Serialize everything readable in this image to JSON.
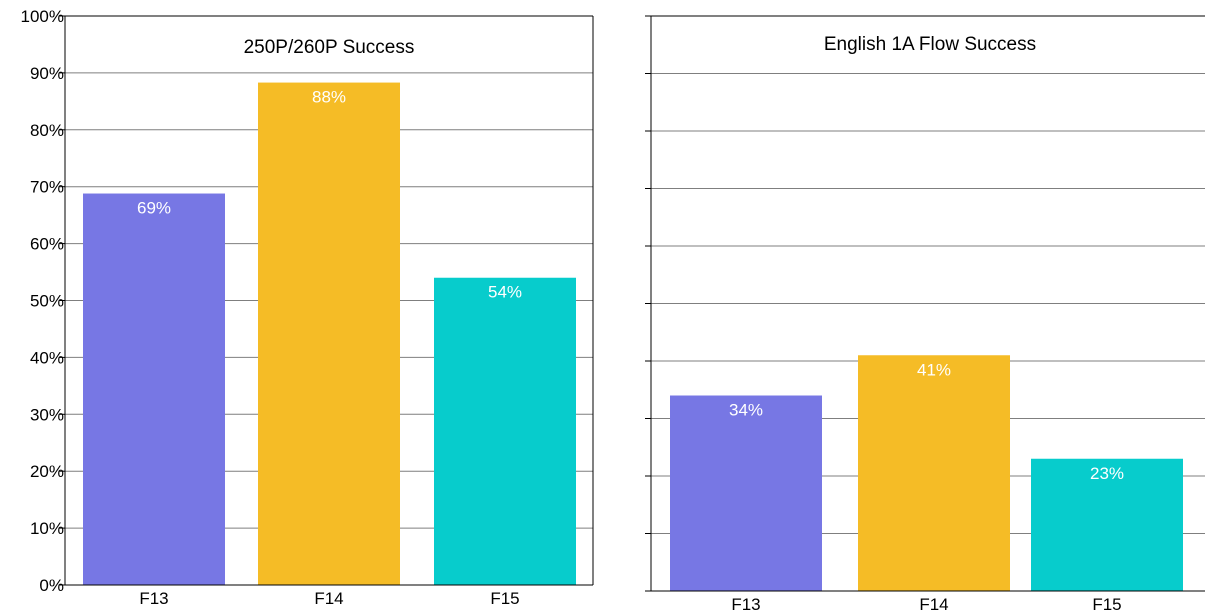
{
  "chart_data": [
    {
      "type": "bar",
      "title": "250P/260P Success",
      "categories": [
        "F13",
        "F14",
        "F15"
      ],
      "values": [
        68.8,
        88.3,
        54.0
      ],
      "value_labels": [
        "69%",
        "88%",
        "54%"
      ],
      "colors": [
        "#7777e4",
        "#f5bc26",
        "#07cccc"
      ],
      "ylim": [
        0,
        100
      ],
      "yticks": [
        0,
        10,
        20,
        30,
        40,
        50,
        60,
        70,
        80,
        90,
        100
      ],
      "ytick_labels": [
        "0%",
        "10%",
        "20%",
        "30%",
        "40%",
        "50%",
        "60%",
        "70%",
        "80%",
        "90%",
        "100%"
      ],
      "grid": true,
      "legend": "none"
    },
    {
      "type": "bar",
      "title": "English 1A Flow Success",
      "categories": [
        "F13",
        "F14",
        "F15"
      ],
      "values": [
        34.0,
        41.0,
        23.0
      ],
      "value_labels": [
        "34%",
        "41%",
        "23%"
      ],
      "colors": [
        "#7777e4",
        "#f5bc26",
        "#07cccc"
      ],
      "ylim": [
        0,
        100
      ],
      "yticks": [
        0,
        10,
        20,
        30,
        40,
        50,
        60,
        70,
        80,
        90,
        100
      ],
      "ytick_labels": [],
      "grid": true,
      "legend": "none"
    }
  ]
}
